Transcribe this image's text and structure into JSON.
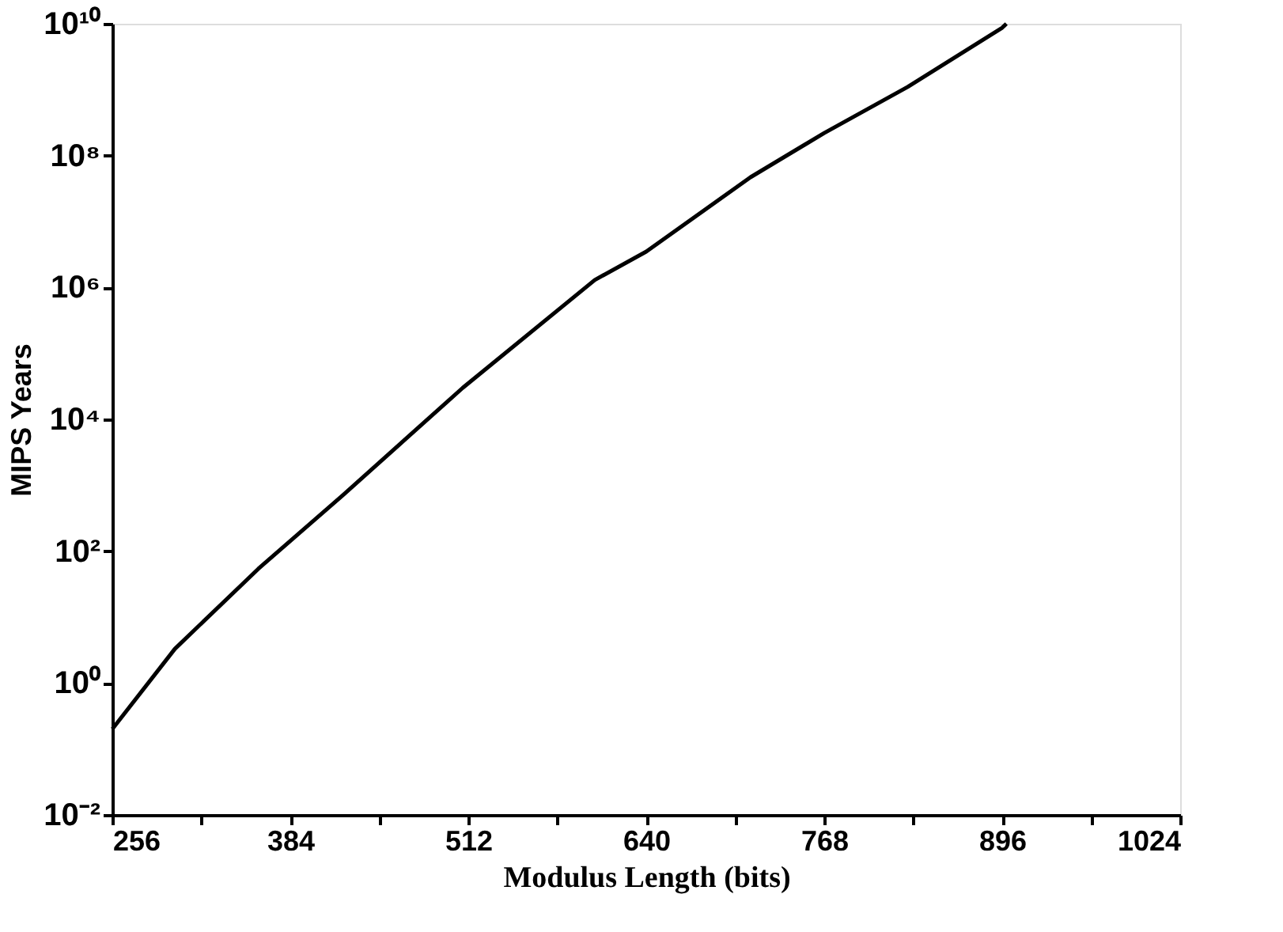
{
  "chart_data": {
    "type": "line",
    "xlabel": "Modulus Length (bits)",
    "ylabel": "MIPS Years",
    "log": "y",
    "grid": false,
    "legend": false,
    "marker": "none",
    "line_style": "solid",
    "x": [
      256,
      301,
      361,
      422,
      508,
      603,
      640,
      715,
      768,
      828,
      896,
      899
    ],
    "series": [
      {
        "color": "#000000",
        "values": [
          0.2,
          3.3,
          54,
          710,
          30000,
          1300000,
          3500000,
          47000000,
          220000000,
          1100000000,
          8700000000,
          10000000000
        ]
      }
    ],
    "xlim": [
      256,
      1024
    ],
    "xticks": [
      256,
      {
        "value": 320,
        "label": null
      },
      384,
      {
        "value": 448,
        "label": null
      },
      512,
      {
        "value": 576,
        "label": null
      },
      640,
      {
        "value": 704,
        "label": null
      },
      768,
      {
        "value": 832,
        "label": null
      },
      896,
      {
        "value": 960,
        "label": null
      },
      1024
    ],
    "ylim": [
      0.01,
      10000000000
    ],
    "yticks": [
      {
        "value": 0.01,
        "label": "10⁻²"
      },
      {
        "value": 1,
        "label": "10⁰"
      },
      {
        "value": 100,
        "label": "10²"
      },
      {
        "value": 10000,
        "label": "10⁴"
      },
      {
        "value": 1000000,
        "label": "10⁶"
      },
      {
        "value": 100000000,
        "label": "10⁸"
      },
      {
        "value": 10000000000,
        "label": "10¹⁰"
      }
    ]
  }
}
